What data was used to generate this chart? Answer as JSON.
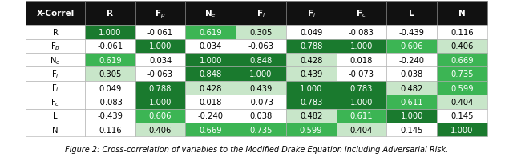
{
  "col_display": [
    "X-Correl",
    "R",
    "F$_p$",
    "N$_e$",
    "F$_l$",
    "F$_i$",
    "F$_c$",
    "L",
    "N"
  ],
  "row_display": [
    "R",
    "F$_p$",
    "N$_e$",
    "F$_l$",
    "F$_i$",
    "F$_c$",
    "L",
    "N"
  ],
  "data": [
    [
      1.0,
      -0.061,
      0.619,
      0.305,
      0.049,
      -0.083,
      -0.439,
      0.116
    ],
    [
      -0.061,
      1.0,
      0.034,
      -0.063,
      0.788,
      1.0,
      0.606,
      0.406
    ],
    [
      0.619,
      0.034,
      1.0,
      0.848,
      0.428,
      0.018,
      -0.24,
      0.669
    ],
    [
      0.305,
      -0.063,
      0.848,
      1.0,
      0.439,
      -0.073,
      0.038,
      0.735
    ],
    [
      0.049,
      0.788,
      0.428,
      0.439,
      1.0,
      0.783,
      0.482,
      0.599
    ],
    [
      -0.083,
      1.0,
      0.018,
      -0.073,
      0.783,
      1.0,
      0.611,
      0.404
    ],
    [
      -0.439,
      0.606,
      -0.24,
      0.038,
      0.482,
      0.611,
      1.0,
      0.145
    ],
    [
      0.116,
      0.406,
      0.669,
      0.735,
      0.599,
      0.404,
      0.145,
      1.0
    ]
  ],
  "header_bg": "#111111",
  "header_fg": "#ffffff",
  "row_label_bg": "#ffffff",
  "row_label_fg": "#000000",
  "color_dark_green": "#1a7a2e",
  "color_mid_green": "#3cb554",
  "color_light_green": "#c8e6c9",
  "color_white": "#ffffff",
  "caption": "Figure 2: Cross-correlation of variables to the Modified Drake Equation including Adversarial Risk.",
  "figsize": [
    6.4,
    2.07
  ],
  "dpi": 100
}
